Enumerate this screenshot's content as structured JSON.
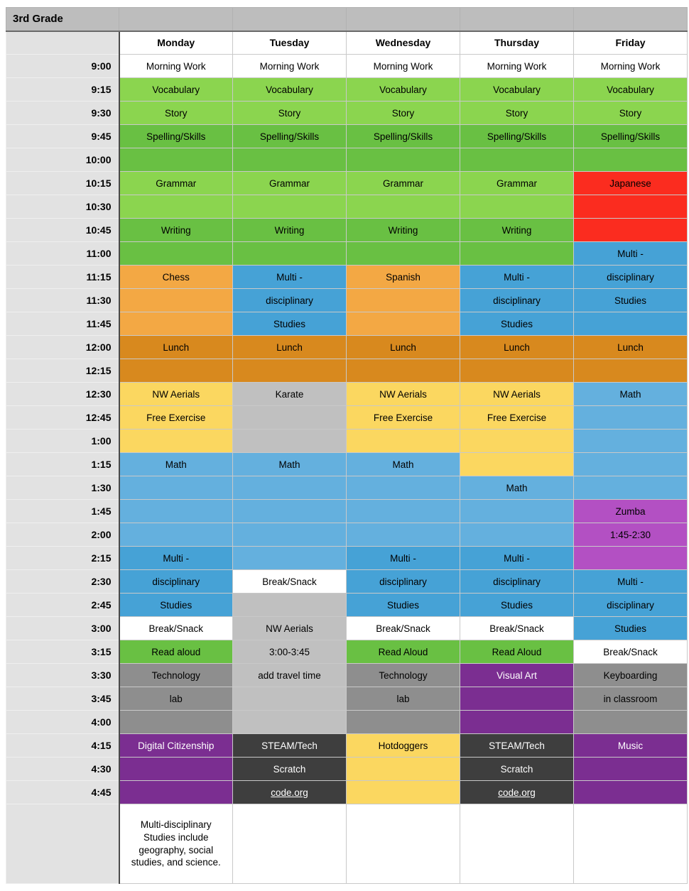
{
  "title": "3rd Grade",
  "days": [
    "Monday",
    "Tuesday",
    "Wednesday",
    "Thursday",
    "Friday"
  ],
  "colors": {
    "wh": "#ffffff",
    "lg": "#8bd54f",
    "dg": "#69c043",
    "or": "#f3a844",
    "do": "#d8891e",
    "ye": "#fbd760",
    "lb": "#64b0de",
    "mb": "#46a2d6",
    "gy": "#c0c0c0",
    "mgy": "#8e8e8e",
    "dk": "#3e3e3e",
    "pu": "#7b2e91",
    "ma": "#b350c3",
    "re": "#fb2c1f",
    "title_bar": "#bdbdbd",
    "time_col": "#e2e2e2"
  },
  "grid": [
    {
      "time": "9:00",
      "cells": [
        {
          "t": "Morning Work",
          "c": "wh"
        },
        {
          "t": "Morning Work",
          "c": "wh"
        },
        {
          "t": "Morning Work",
          "c": "wh"
        },
        {
          "t": "Morning Work",
          "c": "wh"
        },
        {
          "t": "Morning Work",
          "c": "wh"
        }
      ]
    },
    {
      "time": "9:15",
      "cells": [
        {
          "t": "Vocabulary",
          "c": "lg"
        },
        {
          "t": "Vocabulary",
          "c": "lg"
        },
        {
          "t": "Vocabulary",
          "c": "lg"
        },
        {
          "t": "Vocabulary",
          "c": "lg"
        },
        {
          "t": "Vocabulary",
          "c": "lg"
        }
      ]
    },
    {
      "time": "9:30",
      "cells": [
        {
          "t": "Story",
          "c": "lg"
        },
        {
          "t": "Story",
          "c": "lg"
        },
        {
          "t": "Story",
          "c": "lg"
        },
        {
          "t": "Story",
          "c": "lg"
        },
        {
          "t": "Story",
          "c": "lg"
        }
      ]
    },
    {
      "time": "9:45",
      "cells": [
        {
          "t": "Spelling/Skills",
          "c": "dg"
        },
        {
          "t": "Spelling/Skills",
          "c": "dg"
        },
        {
          "t": "Spelling/Skills",
          "c": "dg"
        },
        {
          "t": "Spelling/Skills",
          "c": "dg"
        },
        {
          "t": "Spelling/Skills",
          "c": "dg"
        }
      ]
    },
    {
      "time": "10:00",
      "cells": [
        {
          "t": "",
          "c": "dg"
        },
        {
          "t": "",
          "c": "dg"
        },
        {
          "t": "",
          "c": "dg"
        },
        {
          "t": "",
          "c": "dg"
        },
        {
          "t": "",
          "c": "dg"
        }
      ]
    },
    {
      "time": "10:15",
      "cells": [
        {
          "t": "Grammar",
          "c": "lg"
        },
        {
          "t": "Grammar",
          "c": "lg"
        },
        {
          "t": "Grammar",
          "c": "lg"
        },
        {
          "t": "Grammar",
          "c": "lg"
        },
        {
          "t": "Japanese",
          "c": "re"
        }
      ]
    },
    {
      "time": "10:30",
      "cells": [
        {
          "t": "",
          "c": "lg"
        },
        {
          "t": "",
          "c": "lg"
        },
        {
          "t": "",
          "c": "lg"
        },
        {
          "t": "",
          "c": "lg"
        },
        {
          "t": "",
          "c": "re"
        }
      ]
    },
    {
      "time": "10:45",
      "cells": [
        {
          "t": "Writing",
          "c": "dg"
        },
        {
          "t": "Writing",
          "c": "dg"
        },
        {
          "t": "Writing",
          "c": "dg"
        },
        {
          "t": "Writing",
          "c": "dg"
        },
        {
          "t": "",
          "c": "re"
        }
      ]
    },
    {
      "time": "11:00",
      "cells": [
        {
          "t": "",
          "c": "dg"
        },
        {
          "t": "",
          "c": "dg"
        },
        {
          "t": "",
          "c": "dg"
        },
        {
          "t": "",
          "c": "dg"
        },
        {
          "t": "Multi -",
          "c": "mb"
        }
      ]
    },
    {
      "time": "11:15",
      "cells": [
        {
          "t": "Chess",
          "c": "or"
        },
        {
          "t": "Multi -",
          "c": "mb"
        },
        {
          "t": "Spanish",
          "c": "or"
        },
        {
          "t": "Multi -",
          "c": "mb"
        },
        {
          "t": "disciplinary",
          "c": "mb"
        }
      ]
    },
    {
      "time": "11:30",
      "cells": [
        {
          "t": "",
          "c": "or"
        },
        {
          "t": "disciplinary",
          "c": "mb"
        },
        {
          "t": "",
          "c": "or"
        },
        {
          "t": "disciplinary",
          "c": "mb"
        },
        {
          "t": "Studies",
          "c": "mb"
        }
      ]
    },
    {
      "time": "11:45",
      "cells": [
        {
          "t": "",
          "c": "or"
        },
        {
          "t": "Studies",
          "c": "mb"
        },
        {
          "t": "",
          "c": "or"
        },
        {
          "t": "Studies",
          "c": "mb"
        },
        {
          "t": "",
          "c": "mb"
        }
      ]
    },
    {
      "time": "12:00",
      "cells": [
        {
          "t": "Lunch",
          "c": "do"
        },
        {
          "t": "Lunch",
          "c": "do"
        },
        {
          "t": "Lunch",
          "c": "do"
        },
        {
          "t": "Lunch",
          "c": "do"
        },
        {
          "t": "Lunch",
          "c": "do"
        }
      ]
    },
    {
      "time": "12:15",
      "cells": [
        {
          "t": "",
          "c": "do"
        },
        {
          "t": "",
          "c": "do"
        },
        {
          "t": "",
          "c": "do"
        },
        {
          "t": "",
          "c": "do"
        },
        {
          "t": "",
          "c": "do"
        }
      ]
    },
    {
      "time": "12:30",
      "cells": [
        {
          "t": "NW Aerials",
          "c": "ye"
        },
        {
          "t": "Karate",
          "c": "gy"
        },
        {
          "t": "NW Aerials",
          "c": "ye"
        },
        {
          "t": "NW Aerials",
          "c": "ye"
        },
        {
          "t": "Math",
          "c": "lb"
        }
      ]
    },
    {
      "time": "12:45",
      "cells": [
        {
          "t": "Free Exercise",
          "c": "ye"
        },
        {
          "t": "",
          "c": "gy"
        },
        {
          "t": "Free Exercise",
          "c": "ye"
        },
        {
          "t": "Free Exercise",
          "c": "ye"
        },
        {
          "t": "",
          "c": "lb"
        }
      ]
    },
    {
      "time": "1:00",
      "cells": [
        {
          "t": "",
          "c": "ye"
        },
        {
          "t": "",
          "c": "gy"
        },
        {
          "t": "",
          "c": "ye"
        },
        {
          "t": "",
          "c": "ye"
        },
        {
          "t": "",
          "c": "lb"
        }
      ]
    },
    {
      "time": "1:15",
      "cells": [
        {
          "t": "Math",
          "c": "lb"
        },
        {
          "t": "Math",
          "c": "lb"
        },
        {
          "t": "Math",
          "c": "lb"
        },
        {
          "t": "",
          "c": "ye"
        },
        {
          "t": "",
          "c": "lb"
        }
      ]
    },
    {
      "time": "1:30",
      "cells": [
        {
          "t": "",
          "c": "lb"
        },
        {
          "t": "",
          "c": "lb"
        },
        {
          "t": "",
          "c": "lb"
        },
        {
          "t": "Math",
          "c": "lb"
        },
        {
          "t": "",
          "c": "lb"
        }
      ]
    },
    {
      "time": "1:45",
      "cells": [
        {
          "t": "",
          "c": "lb"
        },
        {
          "t": "",
          "c": "lb"
        },
        {
          "t": "",
          "c": "lb"
        },
        {
          "t": "",
          "c": "lb"
        },
        {
          "t": "Zumba",
          "c": "ma"
        }
      ]
    },
    {
      "time": "2:00",
      "cells": [
        {
          "t": "",
          "c": "lb"
        },
        {
          "t": "",
          "c": "lb"
        },
        {
          "t": "",
          "c": "lb"
        },
        {
          "t": "",
          "c": "lb"
        },
        {
          "t": "1:45-2:30",
          "c": "ma"
        }
      ]
    },
    {
      "time": "2:15",
      "cells": [
        {
          "t": "Multi -",
          "c": "mb"
        },
        {
          "t": "",
          "c": "lb"
        },
        {
          "t": "Multi -",
          "c": "mb"
        },
        {
          "t": "Multi -",
          "c": "mb"
        },
        {
          "t": "",
          "c": "ma"
        }
      ]
    },
    {
      "time": "2:30",
      "cells": [
        {
          "t": "disciplinary",
          "c": "mb"
        },
        {
          "t": "Break/Snack",
          "c": "wh"
        },
        {
          "t": "disciplinary",
          "c": "mb"
        },
        {
          "t": "disciplinary",
          "c": "mb"
        },
        {
          "t": "Multi -",
          "c": "mb"
        }
      ]
    },
    {
      "time": "2:45",
      "cells": [
        {
          "t": "Studies",
          "c": "mb"
        },
        {
          "t": "",
          "c": "gy"
        },
        {
          "t": "Studies",
          "c": "mb"
        },
        {
          "t": "Studies",
          "c": "mb"
        },
        {
          "t": "disciplinary",
          "c": "mb"
        }
      ]
    },
    {
      "time": "3:00",
      "cells": [
        {
          "t": "Break/Snack",
          "c": "wh"
        },
        {
          "t": "NW Aerials",
          "c": "gy"
        },
        {
          "t": "Break/Snack",
          "c": "wh"
        },
        {
          "t": "Break/Snack",
          "c": "wh"
        },
        {
          "t": "Studies",
          "c": "mb"
        }
      ]
    },
    {
      "time": "3:15",
      "cells": [
        {
          "t": "Read aloud",
          "c": "dg"
        },
        {
          "t": "3:00-3:45",
          "c": "gy"
        },
        {
          "t": "Read Aloud",
          "c": "dg"
        },
        {
          "t": "Read Aloud",
          "c": "dg"
        },
        {
          "t": "Break/Snack",
          "c": "wh"
        }
      ]
    },
    {
      "time": "3:30",
      "cells": [
        {
          "t": "Technology",
          "c": "mgy"
        },
        {
          "t": "add travel time",
          "c": "gy"
        },
        {
          "t": "Technology",
          "c": "mgy"
        },
        {
          "t": "Visual Art",
          "c": "pu",
          "w": 1
        },
        {
          "t": "Keyboarding",
          "c": "mgy"
        }
      ]
    },
    {
      "time": "3:45",
      "cells": [
        {
          "t": "lab",
          "c": "mgy"
        },
        {
          "t": "",
          "c": "gy"
        },
        {
          "t": "lab",
          "c": "mgy"
        },
        {
          "t": "",
          "c": "pu"
        },
        {
          "t": "in classroom",
          "c": "mgy"
        }
      ]
    },
    {
      "time": "4:00",
      "cells": [
        {
          "t": "",
          "c": "mgy"
        },
        {
          "t": "",
          "c": "gy"
        },
        {
          "t": "",
          "c": "mgy"
        },
        {
          "t": "",
          "c": "pu"
        },
        {
          "t": "",
          "c": "mgy"
        }
      ]
    },
    {
      "time": "4:15",
      "cells": [
        {
          "t": "Digital Citizenship",
          "c": "pu",
          "w": 1
        },
        {
          "t": "STEAM/Tech",
          "c": "dk",
          "w": 1
        },
        {
          "t": "Hotdoggers",
          "c": "ye"
        },
        {
          "t": "STEAM/Tech",
          "c": "dk",
          "w": 1
        },
        {
          "t": "Music",
          "c": "pu",
          "w": 1
        }
      ]
    },
    {
      "time": "4:30",
      "cells": [
        {
          "t": "",
          "c": "pu"
        },
        {
          "t": "Scratch",
          "c": "dk",
          "w": 1
        },
        {
          "t": "",
          "c": "ye"
        },
        {
          "t": "Scratch",
          "c": "dk",
          "w": 1
        },
        {
          "t": "",
          "c": "pu"
        }
      ]
    },
    {
      "time": "4:45",
      "cells": [
        {
          "t": "",
          "c": "pu"
        },
        {
          "t": "code.org",
          "c": "dk",
          "w": 1,
          "u": 1
        },
        {
          "t": "",
          "c": "ye"
        },
        {
          "t": "code.org",
          "c": "dk",
          "w": 1,
          "u": 1
        },
        {
          "t": "",
          "c": "pu"
        }
      ]
    }
  ],
  "footer": {
    "note": "Multi-disciplinary Studies include geography, social studies, and science.",
    "cells": [
      {
        "t": "Multi-disciplinary Studies include geography, social studies, and science.",
        "c": "wh"
      },
      {
        "t": "",
        "c": "wh"
      },
      {
        "t": "",
        "c": "wh"
      },
      {
        "t": "",
        "c": "wh"
      },
      {
        "t": "",
        "c": "wh"
      }
    ]
  }
}
